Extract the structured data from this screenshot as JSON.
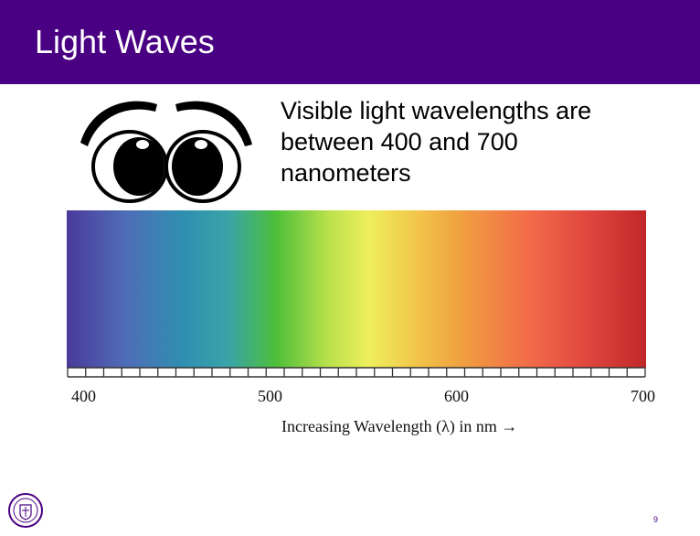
{
  "slide": {
    "title": "Light Waves",
    "body_lines": [
      "Visible light wavelengths are",
      "between 400 and 700",
      "nanometers"
    ],
    "page_number": "9",
    "title_bar_color": "#4a0082"
  },
  "spectrum": {
    "tick_labels": [
      "400",
      "500",
      "600",
      "700"
    ],
    "axis_label": "Increasing Wavelength (λ) in nm →",
    "range_nm": [
      400,
      700
    ],
    "tick_values": [
      400,
      500,
      600,
      700
    ]
  },
  "icons": {
    "eyes": "cartoon-eyes-icon",
    "seal": "university-seal-icon"
  }
}
